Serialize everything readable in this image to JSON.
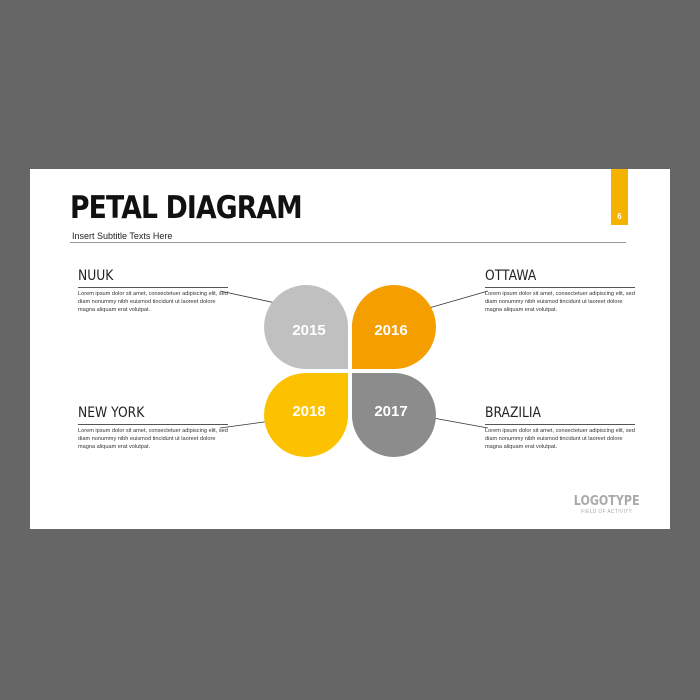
{
  "slide": {
    "title": "PETAL DIAGRAM",
    "subtitle": "Insert Subtitle Texts Here",
    "page_number": "6"
  },
  "blocks": [
    {
      "label": "NUUK",
      "body": "Lorem ipsum dolor sit amet, consectetuer adipiscing elit, sed diam nonummy nibh euismod tincidunt ut laoreet dolore magna aliquam erat volutpat."
    },
    {
      "label": "OTTAWA",
      "body": "Lorem ipsum dolor sit amet, consectetuer adipiscing elit, sed diam nonummy nibh euismod tincidunt ut laoreet dolore magna aliquam erat volutpat."
    },
    {
      "label": "NEW YORK",
      "body": "Lorem ipsum dolor sit amet, consectetuer adipiscing elit, sed diam nonummy nibh euismod tincidunt ut laoreet dolore magna aliquam erat volutpat."
    },
    {
      "label": "BRAZILIA",
      "body": "Lorem ipsum dolor sit amet, consectetuer adipiscing elit, sed diam nonummy nibh euismod tincidunt ut laoreet dolore magna aliquam erat volutpat."
    }
  ],
  "petals": [
    {
      "year": "2015",
      "color": "#c0c0c0"
    },
    {
      "year": "2016",
      "color": "#f59e00"
    },
    {
      "year": "2018",
      "color": "#fcc200"
    },
    {
      "year": "2017",
      "color": "#8c8c8c"
    }
  ],
  "logo": {
    "name": "LOGOTYPE",
    "tagline": "FIELD OF ACTIVITY"
  },
  "colors": {
    "background": "#666666",
    "slide": "#ffffff",
    "accent": "#f5b300"
  }
}
